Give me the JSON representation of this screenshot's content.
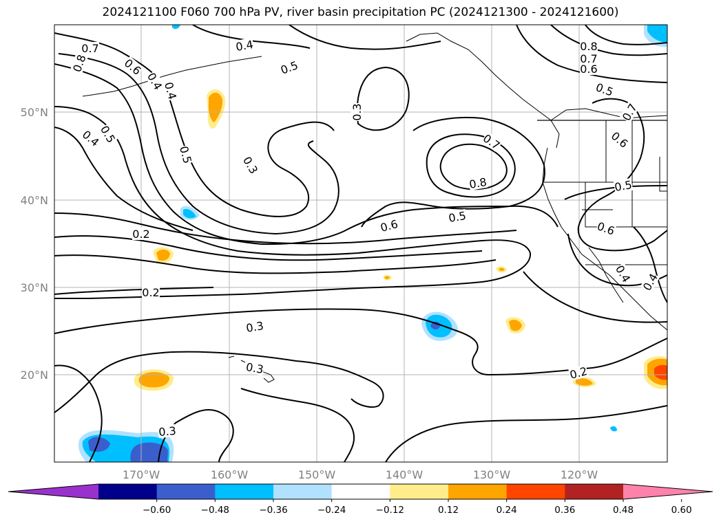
{
  "title": "2024121100 F060 700 hPa PV, river basin precipitation PC (2024121300 - 2024121600)",
  "map": {
    "lat_labels": [
      "50°N",
      "40°N",
      "30°N",
      "20°N"
    ],
    "lon_labels": [
      "170°W",
      "160°W",
      "150°W",
      "140°W",
      "130°W",
      "120°W"
    ],
    "contour_labels": [
      "0.7",
      "0.8",
      "0.6",
      "0.5",
      "0.4",
      "0.4",
      "0.5",
      "0.3",
      "0.2",
      "0.4",
      "0.5",
      "0.3",
      "0.8",
      "0.7",
      "0.6",
      "0.5",
      "0.7",
      "0.6",
      "0.7",
      "0.8",
      "0.6",
      "0.5",
      "0.5",
      "0.6",
      "0.4",
      "0.4",
      "0.2",
      "0.3",
      "0.3",
      "0.2",
      "0.3",
      "0.4"
    ]
  },
  "colorbar": {
    "ticks": [
      "−0.60",
      "−0.48",
      "−0.36",
      "−0.24",
      "−0.12",
      "0.12",
      "0.24",
      "0.36",
      "0.48",
      "0.60"
    ],
    "colors": [
      "#9932cc",
      "#00008b",
      "#3a5fcd",
      "#00bfff",
      "#b0e2ff",
      "#ffffff",
      "#ffec8b",
      "#ffa500",
      "#ff4500",
      "#b22222",
      "#ff82ab"
    ]
  }
}
